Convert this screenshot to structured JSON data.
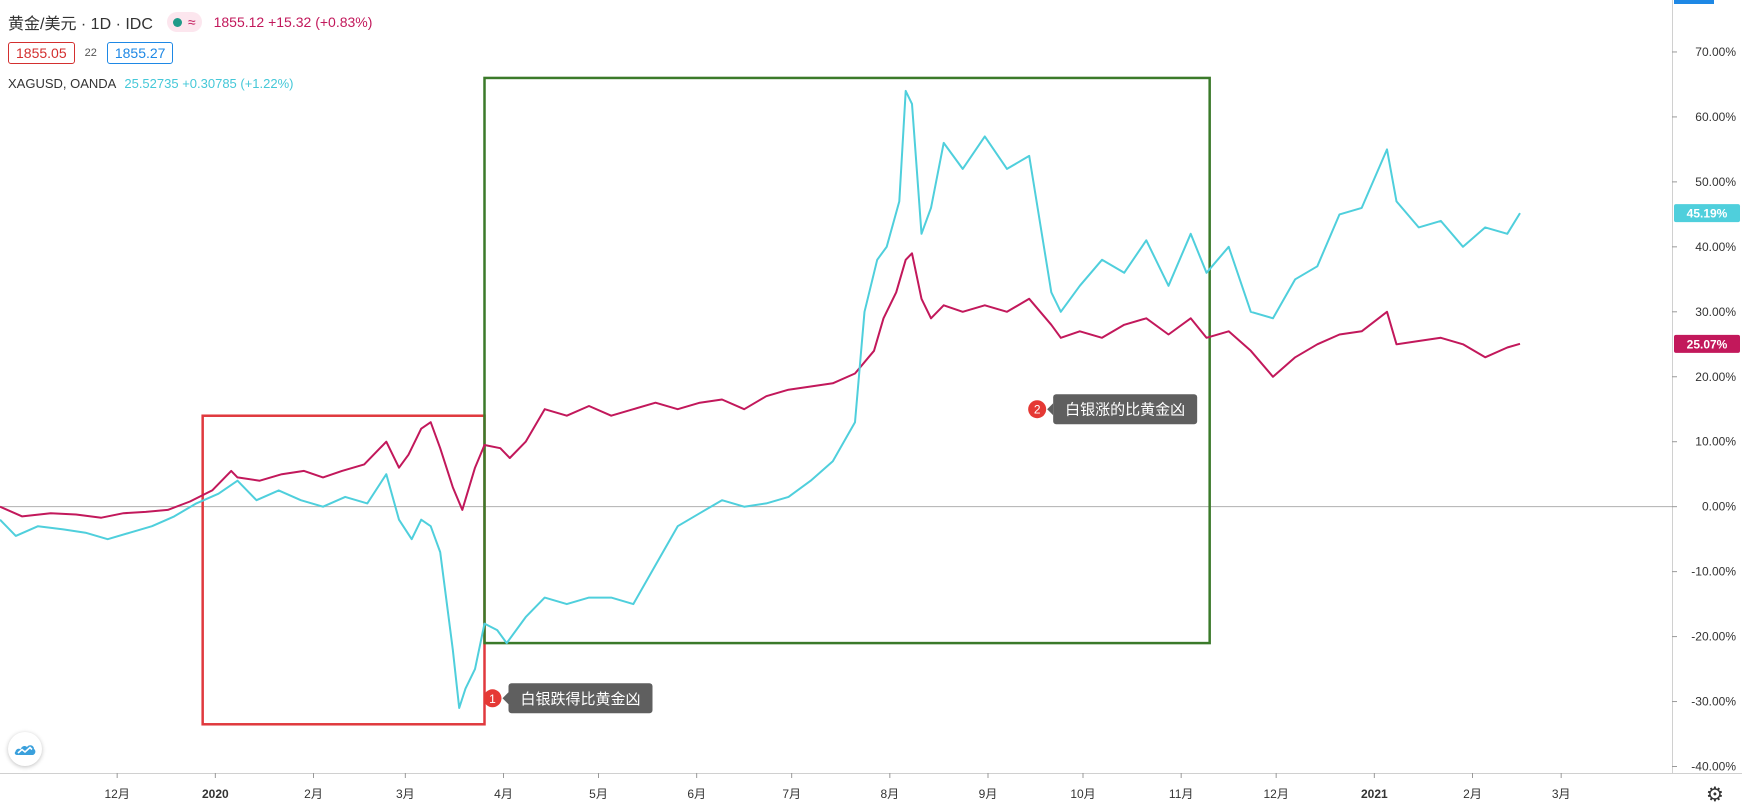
{
  "header": {
    "symbol": "黄金/美元 · 1D · IDC",
    "status_icon": "wave-icon",
    "price_line": "1855.12 +15.32 (+0.83%)",
    "bid": "1855.05",
    "spread": "22",
    "ask": "1855.27",
    "compare_symbol": "XAGUSD, OANDA",
    "compare_line": "25.52735 +0.30785 (+1.22%)"
  },
  "colors": {
    "gold": "#c2185b",
    "silver": "#4fcfdc",
    "red_box": "#e0393e",
    "green_box": "#3b7a2a",
    "badge": "#e53935",
    "callout_bg": "#5f5f5f"
  },
  "annotations": [
    {
      "number": "1",
      "text": "白银跌得比黄金凶",
      "span": [
        "2019-12-28",
        "2020-03-26"
      ],
      "range": [
        -33.5,
        14
      ]
    },
    {
      "number": "2",
      "text": "白银涨的比黄金凶",
      "span": [
        "2020-03-26",
        "2020-11-10"
      ],
      "range": [
        -21,
        66
      ]
    }
  ],
  "chart_data": {
    "type": "line",
    "y_unit": "percent change",
    "ylim": [
      -41,
      78
    ],
    "xlim": [
      "2019-10-25",
      "2021-04-05"
    ],
    "y_ticks": [
      "70.00%",
      "60.00%",
      "50.00%",
      "40.00%",
      "30.00%",
      "20.00%",
      "10.00%",
      "0.00%",
      "-10.00%",
      "-20.00%",
      "-30.00%",
      "-40.00%"
    ],
    "y_tick_values": [
      70,
      60,
      50,
      40,
      30,
      20,
      10,
      0,
      -10,
      -20,
      -30,
      -40
    ],
    "x_ticks": [
      {
        "label": "12月",
        "date": "2019-12-01",
        "bold": false
      },
      {
        "label": "2020",
        "date": "2020-01-01",
        "bold": true
      },
      {
        "label": "2月",
        "date": "2020-02-01",
        "bold": false
      },
      {
        "label": "3月",
        "date": "2020-03-01",
        "bold": false
      },
      {
        "label": "4月",
        "date": "2020-04-01",
        "bold": false
      },
      {
        "label": "5月",
        "date": "2020-05-01",
        "bold": false
      },
      {
        "label": "6月",
        "date": "2020-06-01",
        "bold": false
      },
      {
        "label": "7月",
        "date": "2020-07-01",
        "bold": false
      },
      {
        "label": "8月",
        "date": "2020-08-01",
        "bold": false
      },
      {
        "label": "9月",
        "date": "2020-09-01",
        "bold": false
      },
      {
        "label": "10月",
        "date": "2020-10-01",
        "bold": false
      },
      {
        "label": "11月",
        "date": "2020-11-01",
        "bold": false
      },
      {
        "label": "12月",
        "date": "2020-12-01",
        "bold": false
      },
      {
        "label": "2021",
        "date": "2021-01-01",
        "bold": true
      },
      {
        "label": "2月",
        "date": "2021-02-01",
        "bold": false
      },
      {
        "label": "3月",
        "date": "2021-03-01",
        "bold": false
      }
    ],
    "series": [
      {
        "name": "黄金/美元",
        "color": "#c2185b",
        "last_label": "25.07%",
        "points": [
          [
            "2019-10-25",
            0
          ],
          [
            "2019-11-01",
            -1.5
          ],
          [
            "2019-11-10",
            -1
          ],
          [
            "2019-11-18",
            -1.2
          ],
          [
            "2019-11-26",
            -1.7
          ],
          [
            "2019-12-03",
            -1
          ],
          [
            "2019-12-10",
            -0.8
          ],
          [
            "2019-12-17",
            -0.5
          ],
          [
            "2019-12-24",
            0.8
          ],
          [
            "2019-12-31",
            2.5
          ],
          [
            "2020-01-06",
            5.5
          ],
          [
            "2020-01-08",
            4.5
          ],
          [
            "2020-01-15",
            4
          ],
          [
            "2020-01-22",
            5
          ],
          [
            "2020-01-29",
            5.5
          ],
          [
            "2020-02-04",
            4.5
          ],
          [
            "2020-02-10",
            5.5
          ],
          [
            "2020-02-17",
            6.5
          ],
          [
            "2020-02-24",
            10
          ],
          [
            "2020-02-28",
            6
          ],
          [
            "2020-03-02",
            8
          ],
          [
            "2020-03-06",
            12
          ],
          [
            "2020-03-09",
            13
          ],
          [
            "2020-03-12",
            9
          ],
          [
            "2020-03-16",
            3
          ],
          [
            "2020-03-19",
            -0.5
          ],
          [
            "2020-03-23",
            6
          ],
          [
            "2020-03-26",
            9.5
          ],
          [
            "2020-03-31",
            9
          ],
          [
            "2020-04-03",
            7.5
          ],
          [
            "2020-04-08",
            10
          ],
          [
            "2020-04-14",
            15
          ],
          [
            "2020-04-21",
            14
          ],
          [
            "2020-04-28",
            15.5
          ],
          [
            "2020-05-05",
            14
          ],
          [
            "2020-05-12",
            15
          ],
          [
            "2020-05-19",
            16
          ],
          [
            "2020-05-26",
            15
          ],
          [
            "2020-06-02",
            16
          ],
          [
            "2020-06-09",
            16.5
          ],
          [
            "2020-06-16",
            15
          ],
          [
            "2020-06-23",
            17
          ],
          [
            "2020-06-30",
            18
          ],
          [
            "2020-07-07",
            18.5
          ],
          [
            "2020-07-14",
            19
          ],
          [
            "2020-07-21",
            20.5
          ],
          [
            "2020-07-27",
            24
          ],
          [
            "2020-07-30",
            29
          ],
          [
            "2020-08-03",
            33
          ],
          [
            "2020-08-06",
            38
          ],
          [
            "2020-08-08",
            39
          ],
          [
            "2020-08-11",
            32
          ],
          [
            "2020-08-14",
            29
          ],
          [
            "2020-08-18",
            31
          ],
          [
            "2020-08-24",
            30
          ],
          [
            "2020-08-31",
            31
          ],
          [
            "2020-09-07",
            30
          ],
          [
            "2020-09-14",
            32
          ],
          [
            "2020-09-21",
            28
          ],
          [
            "2020-09-24",
            26
          ],
          [
            "2020-09-30",
            27
          ],
          [
            "2020-10-07",
            26
          ],
          [
            "2020-10-14",
            28
          ],
          [
            "2020-10-21",
            29
          ],
          [
            "2020-10-28",
            26.5
          ],
          [
            "2020-11-04",
            29
          ],
          [
            "2020-11-09",
            26
          ],
          [
            "2020-11-16",
            27
          ],
          [
            "2020-11-23",
            24
          ],
          [
            "2020-11-30",
            20
          ],
          [
            "2020-12-07",
            23
          ],
          [
            "2020-12-14",
            25
          ],
          [
            "2020-12-21",
            26.5
          ],
          [
            "2020-12-28",
            27
          ],
          [
            "2021-01-05",
            30
          ],
          [
            "2021-01-08",
            25
          ],
          [
            "2021-01-15",
            25.5
          ],
          [
            "2021-01-22",
            26
          ],
          [
            "2021-01-29",
            25
          ],
          [
            "2021-02-05",
            23
          ],
          [
            "2021-02-12",
            24.5
          ],
          [
            "2021-02-16",
            25.07
          ]
        ]
      },
      {
        "name": "XAGUSD, OANDA",
        "color": "#4fcfdc",
        "last_label": "45.19%",
        "points": [
          [
            "2019-10-25",
            -2
          ],
          [
            "2019-10-30",
            -4.5
          ],
          [
            "2019-11-06",
            -3
          ],
          [
            "2019-11-14",
            -3.5
          ],
          [
            "2019-11-21",
            -4
          ],
          [
            "2019-11-28",
            -5
          ],
          [
            "2019-12-05",
            -4
          ],
          [
            "2019-12-12",
            -3
          ],
          [
            "2019-12-19",
            -1.5
          ],
          [
            "2019-12-26",
            0.5
          ],
          [
            "2020-01-02",
            2
          ],
          [
            "2020-01-08",
            4
          ],
          [
            "2020-01-14",
            1
          ],
          [
            "2020-01-21",
            2.5
          ],
          [
            "2020-01-28",
            1
          ],
          [
            "2020-02-04",
            0
          ],
          [
            "2020-02-11",
            1.5
          ],
          [
            "2020-02-18",
            0.5
          ],
          [
            "2020-02-24",
            5
          ],
          [
            "2020-02-28",
            -2
          ],
          [
            "2020-03-03",
            -5
          ],
          [
            "2020-03-06",
            -2
          ],
          [
            "2020-03-09",
            -3
          ],
          [
            "2020-03-12",
            -7
          ],
          [
            "2020-03-16",
            -22
          ],
          [
            "2020-03-18",
            -31
          ],
          [
            "2020-03-20",
            -28
          ],
          [
            "2020-03-23",
            -25
          ],
          [
            "2020-03-26",
            -18
          ],
          [
            "2020-03-30",
            -19
          ],
          [
            "2020-04-02",
            -21
          ],
          [
            "2020-04-08",
            -17
          ],
          [
            "2020-04-14",
            -14
          ],
          [
            "2020-04-21",
            -15
          ],
          [
            "2020-04-28",
            -14
          ],
          [
            "2020-05-05",
            -14
          ],
          [
            "2020-05-12",
            -15
          ],
          [
            "2020-05-19",
            -9
          ],
          [
            "2020-05-26",
            -3
          ],
          [
            "2020-06-02",
            -1
          ],
          [
            "2020-06-09",
            1
          ],
          [
            "2020-06-16",
            0
          ],
          [
            "2020-06-23",
            0.5
          ],
          [
            "2020-06-30",
            1.5
          ],
          [
            "2020-07-07",
            4
          ],
          [
            "2020-07-14",
            7
          ],
          [
            "2020-07-21",
            13
          ],
          [
            "2020-07-24",
            30
          ],
          [
            "2020-07-28",
            38
          ],
          [
            "2020-07-31",
            40
          ],
          [
            "2020-08-04",
            47
          ],
          [
            "2020-08-06",
            64
          ],
          [
            "2020-08-08",
            62
          ],
          [
            "2020-08-11",
            42
          ],
          [
            "2020-08-14",
            46
          ],
          [
            "2020-08-18",
            56
          ],
          [
            "2020-08-24",
            52
          ],
          [
            "2020-08-31",
            57
          ],
          [
            "2020-09-07",
            52
          ],
          [
            "2020-09-14",
            54
          ],
          [
            "2020-09-21",
            33
          ],
          [
            "2020-09-24",
            30
          ],
          [
            "2020-09-30",
            34
          ],
          [
            "2020-10-07",
            38
          ],
          [
            "2020-10-14",
            36
          ],
          [
            "2020-10-21",
            41
          ],
          [
            "2020-10-28",
            34
          ],
          [
            "2020-11-04",
            42
          ],
          [
            "2020-11-09",
            36
          ],
          [
            "2020-11-16",
            40
          ],
          [
            "2020-11-23",
            30
          ],
          [
            "2020-11-30",
            29
          ],
          [
            "2020-12-07",
            35
          ],
          [
            "2020-12-14",
            37
          ],
          [
            "2020-12-21",
            45
          ],
          [
            "2020-12-28",
            46
          ],
          [
            "2021-01-05",
            55
          ],
          [
            "2021-01-08",
            47
          ],
          [
            "2021-01-15",
            43
          ],
          [
            "2021-01-22",
            44
          ],
          [
            "2021-01-29",
            40
          ],
          [
            "2021-02-05",
            43
          ],
          [
            "2021-02-12",
            42
          ],
          [
            "2021-02-16",
            45.19
          ]
        ]
      }
    ]
  }
}
